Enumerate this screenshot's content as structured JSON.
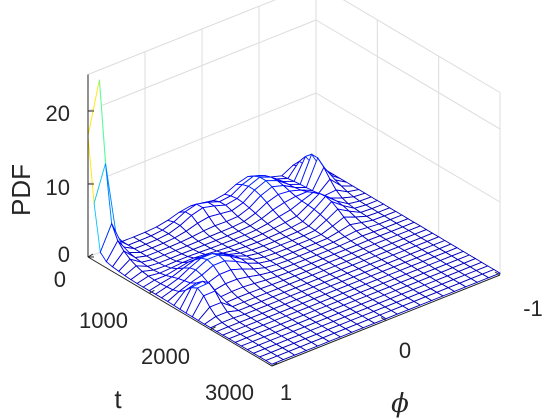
{
  "chart_data": {
    "type": "surface",
    "title": "",
    "xlabel": "ϕ",
    "ylabel": "t",
    "zlabel": "PDF",
    "xlim": [
      1,
      -1
    ],
    "ylim": [
      0,
      3000
    ],
    "zlim": [
      0,
      25
    ],
    "x_ticks": [
      "1",
      "0",
      "-1"
    ],
    "y_ticks": [
      "0",
      "1000",
      "2000",
      "3000"
    ],
    "z_ticks": [
      "0",
      "10",
      "20"
    ],
    "grid": true,
    "colormap": "jet",
    "t_samples": [
      0,
      100,
      200,
      300,
      400,
      500,
      600,
      700,
      800,
      900,
      1000,
      1100,
      1200,
      1300,
      1400,
      1500,
      1600,
      1700,
      1800,
      1900,
      2000,
      2100,
      2200,
      2300,
      2400,
      2500,
      2600,
      2700,
      2800,
      2900,
      3000
    ],
    "phi_samples": [
      -1.0,
      -0.9,
      -0.8,
      -0.7,
      -0.6,
      -0.5,
      -0.4,
      -0.3,
      -0.2,
      -0.1,
      0.0,
      0.1,
      0.2,
      0.3,
      0.4,
      0.5,
      0.6,
      0.7,
      0.8,
      0.9,
      1.0
    ],
    "features": [
      {
        "description_t": 0,
        "peak_phi": 0.95,
        "peak_pdf": 24
      },
      {
        "description_t": 300,
        "peak_phi": -0.8,
        "peak_pdf": 5
      },
      {
        "description_t": 1600,
        "peak_phi": 0.85,
        "peak_pdf": 6
      }
    ]
  },
  "labels": {
    "zlabel": "PDF",
    "ylabel": "t",
    "xlabel": "ϕ",
    "z_ticks": [
      "0",
      "10",
      "20"
    ],
    "y_ticks": [
      "0",
      "1000",
      "2000",
      "3000"
    ],
    "x_ticks": [
      "1",
      "0",
      "-1"
    ]
  }
}
